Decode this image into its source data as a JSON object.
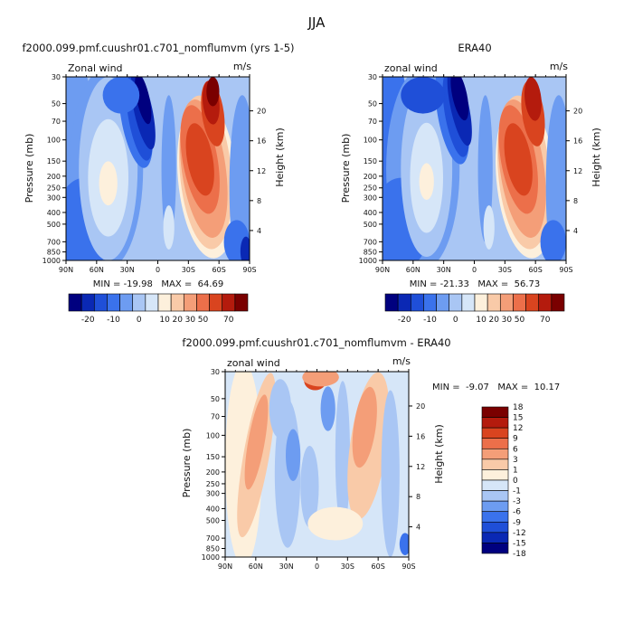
{
  "page": {
    "title": "JJA"
  },
  "scales": {
    "wind_colors": [
      "#00007f",
      "#0a28b4",
      "#1f4fd8",
      "#3a72ec",
      "#6d9cf1",
      "#a9c6f4",
      "#d6e6f8",
      "#fdf0dc",
      "#f9caa8",
      "#f49e78",
      "#ec6f4a",
      "#d9441f",
      "#b41b0d",
      "#7a0000"
    ],
    "wind_labels": [
      "-20",
      "-10",
      "0",
      "10",
      "20",
      "30",
      "50",
      "70"
    ],
    "diff_colors": [
      "#00007f",
      "#0a28b4",
      "#1f4fd8",
      "#3a72ec",
      "#6d9cf1",
      "#a9c6f4",
      "#d6e6f8",
      "#fdf0dc",
      "#f9caa8",
      "#f49e78",
      "#ec6f4a",
      "#d9441f",
      "#b41b0d",
      "#7a0000"
    ],
    "diff_labels": [
      "18",
      "15",
      "12",
      "9",
      "6",
      "3",
      "1",
      "0",
      "-1",
      "-3",
      "-6",
      "-9",
      "-12",
      "-15",
      "-18"
    ]
  },
  "chart_data": [
    {
      "type": "heatmap",
      "title": "f2000.099.pmf.cuushr01.c701_nomflumvm (yrs 1-5)",
      "field_label": "Zonal wind",
      "units": "m/s",
      "ylabel": "Pressure (mb)",
      "ylabel_right": "Height (km)",
      "x_ticks": [
        "90N",
        "60N",
        "30N",
        "0",
        "30S",
        "60S",
        "90S"
      ],
      "y_ticks": [
        "30",
        "50",
        "70",
        "100",
        "150",
        "200",
        "250",
        "300",
        "400",
        "500",
        "700",
        "850",
        "1000"
      ],
      "y_right_ticks": [
        "20",
        "16",
        "12",
        "8",
        "4"
      ],
      "stats": "MIN = -19.98   MAX =  64.69",
      "min": -19.98,
      "max": 64.69
    },
    {
      "type": "heatmap",
      "title": "ERA40",
      "field_label": "zonal wind",
      "units": "m/s",
      "ylabel": "Pressure (mb)",
      "ylabel_right": "Height (km)",
      "x_ticks": [
        "90N",
        "60N",
        "30N",
        "0",
        "30S",
        "60S",
        "90S"
      ],
      "y_ticks": [
        "30",
        "50",
        "70",
        "100",
        "150",
        "200",
        "250",
        "300",
        "400",
        "500",
        "700",
        "850",
        "1000"
      ],
      "y_right_ticks": [
        "20",
        "16",
        "12",
        "8",
        "4"
      ],
      "stats": "MIN = -21.33   MAX =  56.73",
      "min": -21.33,
      "max": 56.73
    },
    {
      "type": "heatmap",
      "title": "f2000.099.pmf.cuushr01.c701_nomflumvm - ERA40",
      "field_label": "zonal wind",
      "units": "m/s",
      "ylabel": "Pressure (mb)",
      "ylabel_right": "Height (km)",
      "x_ticks": [
        "90N",
        "60N",
        "30N",
        "0",
        "30S",
        "60S",
        "90S"
      ],
      "y_ticks": [
        "30",
        "50",
        "70",
        "100",
        "150",
        "200",
        "250",
        "300",
        "400",
        "500",
        "700",
        "850",
        "1000"
      ],
      "y_right_ticks": [
        "20",
        "16",
        "12",
        "8",
        "4"
      ],
      "stats": "MIN =  -9.07   MAX =  10.17",
      "min": -9.07,
      "max": 10.17
    }
  ]
}
